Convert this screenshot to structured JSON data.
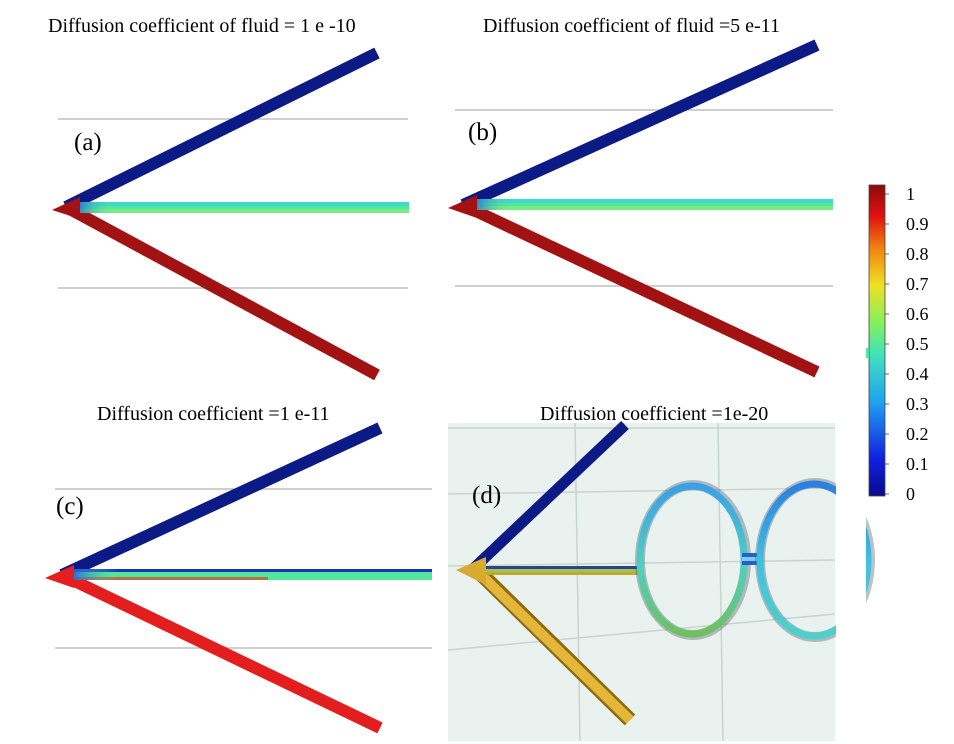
{
  "panels": [
    {
      "id": "a",
      "label": "(a)",
      "title": "Diffusion coefficient of fluid = 1 e -10"
    },
    {
      "id": "b",
      "label": "(b)",
      "title": "Diffusion coefficient of fluid =5 e-11"
    },
    {
      "id": "c",
      "label": "(c)",
      "title": "Diffusion coefficient =1 e-11"
    },
    {
      "id": "d",
      "label": "(d)",
      "title": "Diffusion coefficient =1e-20"
    }
  ],
  "colorbar": {
    "min": 0,
    "max": 1,
    "ticks": [
      "1",
      "0.9",
      "0.8",
      "0.7",
      "0.6",
      "0.5",
      "0.4",
      "0.3",
      "0.2",
      "0.1",
      "0"
    ],
    "colormap": "rainbow"
  },
  "colors": {
    "low": "#0a1a8c",
    "high": "#a01010",
    "mid": "#52e69a",
    "panel_d_bg": "#e9f2ee"
  }
}
